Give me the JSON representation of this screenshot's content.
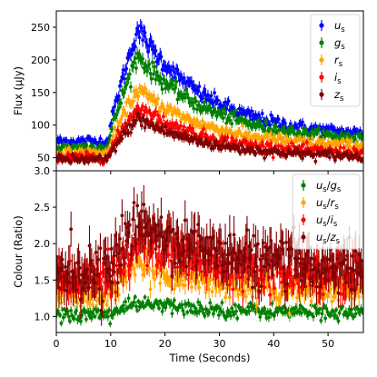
{
  "chart_data": [
    {
      "type": "scatter",
      "panel": "top",
      "ylabel": "Flux (μJy)",
      "xlabel": "",
      "xlim": [
        0,
        56.5
      ],
      "ylim": [
        30,
        275
      ],
      "yticks": [
        50,
        100,
        150,
        200,
        250
      ],
      "xticks": [
        0,
        10,
        20,
        30,
        40,
        50
      ],
      "show_x_ticklabels": false,
      "legend": "top-right",
      "grid": false,
      "error_bars": true,
      "series": [
        {
          "name": "u_s",
          "label_main": "u",
          "label_sub": "s",
          "color": "#0000ff",
          "model": {
            "base": 75,
            "rise_start": 9.5,
            "peak_time": 15,
            "peak": 247,
            "tau": 13,
            "final": 80
          }
        },
        {
          "name": "g_s",
          "label_main": "g",
          "label_sub": "s",
          "color": "#008000",
          "model": {
            "base": 66,
            "rise_start": 9.5,
            "peak_time": 15,
            "peak": 207,
            "tau": 13,
            "final": 75
          }
        },
        {
          "name": "r_s",
          "label_main": "r",
          "label_sub": "s",
          "color": "#ffa500",
          "model": {
            "base": 57,
            "rise_start": 9.5,
            "peak_time": 15,
            "peak": 155,
            "tau": 13,
            "final": 65
          }
        },
        {
          "name": "i_s",
          "label_main": "i",
          "label_sub": "s",
          "color": "#ff0000",
          "model": {
            "base": 50,
            "rise_start": 9.5,
            "peak_time": 15,
            "peak": 128,
            "tau": 13,
            "final": 55
          }
        },
        {
          "name": "z_s",
          "label_main": "z",
          "label_sub": "s",
          "color": "#800000",
          "model": {
            "base": 47,
            "rise_start": 9.5,
            "peak_time": 15,
            "peak": 110,
            "tau": 13,
            "final": 50
          }
        }
      ]
    },
    {
      "type": "scatter",
      "panel": "bottom",
      "ylabel": "Colour (Ratio)",
      "xlabel": "Time (Seconds)",
      "xlim": [
        0,
        56.5
      ],
      "ylim": [
        0.78,
        3.0
      ],
      "yticks": [
        1.0,
        1.5,
        2.0,
        2.5,
        3.0
      ],
      "xticks": [
        0,
        10,
        20,
        30,
        40,
        50
      ],
      "legend": "top-right",
      "grid": false,
      "error_bars": true,
      "series": [
        {
          "name": "u_s/g_s",
          "label_main": "u",
          "label_sub": "s",
          "label_main2": "g",
          "label_sub2": "s",
          "color": "#008000",
          "model": {
            "base": 1.03,
            "peak": 1.18,
            "final": 1.05,
            "noise": 0.05,
            "err": 0.05
          }
        },
        {
          "name": "u_s/r_s",
          "label_main": "u",
          "label_sub": "s",
          "label_main2": "r",
          "label_sub2": "s",
          "color": "#ffa500",
          "model": {
            "base": 1.3,
            "peak": 1.7,
            "final": 1.33,
            "noise": 0.09,
            "err": 0.1
          }
        },
        {
          "name": "u_s/i_s",
          "label_main": "u",
          "label_sub": "s",
          "label_main2": "i",
          "label_sub2": "s",
          "color": "#ff0000",
          "model": {
            "base": 1.5,
            "peak": 2.05,
            "final": 1.55,
            "noise": 0.13,
            "err": 0.17
          }
        },
        {
          "name": "u_s/z_s",
          "label_main": "u",
          "label_sub": "s",
          "label_main2": "z",
          "label_sub2": "s",
          "color": "#800000",
          "model": {
            "base": 1.62,
            "peak": 2.3,
            "final": 1.65,
            "noise": 0.17,
            "err": 0.22
          }
        }
      ]
    }
  ]
}
